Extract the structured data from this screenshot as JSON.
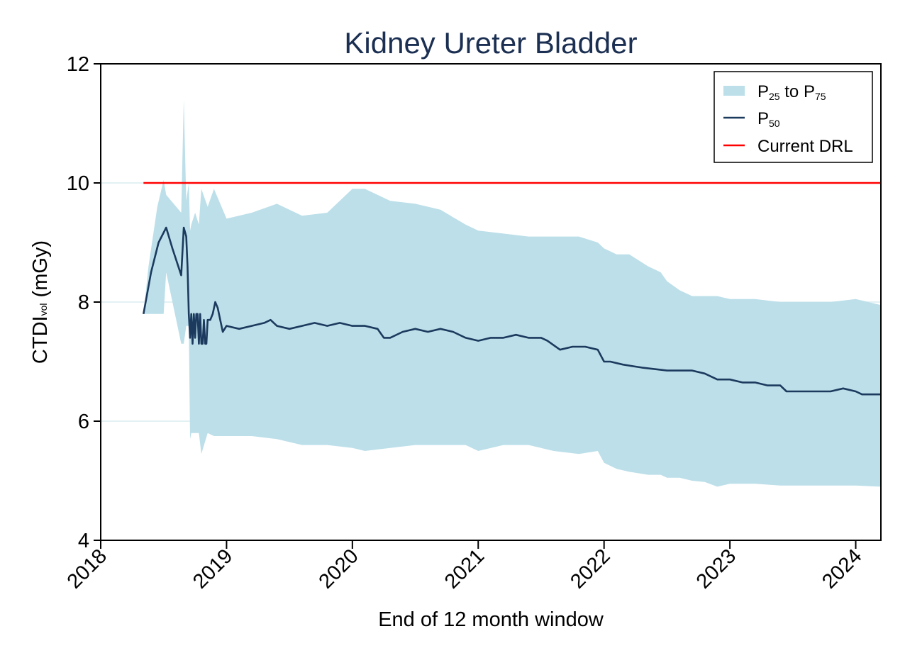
{
  "chart_data": {
    "type": "area",
    "title": "Kidney Ureter Bladder",
    "xlabel": "End of 12 month window",
    "ylabel": {
      "main": "CTDI",
      "sub": "vol",
      "unit": " (mGy)"
    },
    "xlim": [
      2018.0,
      2024.2
    ],
    "ylim": [
      4,
      12
    ],
    "x_ticks": [
      2018,
      2019,
      2020,
      2021,
      2022,
      2023,
      2024
    ],
    "x_tick_labels": [
      "2018",
      "2019",
      "2020",
      "2021",
      "2022",
      "2023",
      "2024"
    ],
    "y_ticks": [
      4,
      6,
      8,
      10,
      12
    ],
    "y_tick_labels": [
      "4",
      "6",
      "8",
      "10",
      "12"
    ],
    "grid": "horizontal",
    "legend": {
      "position": "top-right",
      "entries": [
        {
          "key": "band",
          "parts": [
            [
              "P",
              ""
            ],
            [
              "25",
              "sub"
            ],
            [
              " to P",
              ""
            ],
            [
              "75",
              "sub"
            ]
          ]
        },
        {
          "key": "median",
          "parts": [
            [
              "P",
              ""
            ],
            [
              "50",
              "sub"
            ]
          ]
        },
        {
          "key": "drl",
          "parts": [
            [
              "Current DRL",
              ""
            ]
          ]
        }
      ]
    },
    "colors": {
      "band": "#bcdfe9",
      "median": "#1b3a5e",
      "drl": "#ff0000",
      "grid": "#e3f1f4"
    },
    "series": [
      {
        "name": "P25 to P75",
        "x": [
          2018.34,
          2018.38,
          2018.45,
          2018.5,
          2018.52,
          2018.56,
          2018.64,
          2018.66,
          2018.68,
          2018.7,
          2018.71,
          2018.72,
          2018.75,
          2018.78,
          2018.8,
          2018.85,
          2018.9,
          2019.0,
          2019.2,
          2019.4,
          2019.6,
          2019.8,
          2020.0,
          2020.1,
          2020.3,
          2020.5,
          2020.7,
          2020.9,
          2021.0,
          2021.2,
          2021.4,
          2021.6,
          2021.8,
          2021.95,
          2022.0,
          2022.1,
          2022.2,
          2022.35,
          2022.45,
          2022.5,
          2022.6,
          2022.7,
          2022.8,
          2022.9,
          2023.0,
          2023.2,
          2023.4,
          2023.6,
          2023.8,
          2024.0,
          2024.2
        ],
        "low": [
          7.8,
          7.8,
          7.8,
          7.8,
          8.5,
          8.1,
          7.3,
          7.3,
          7.6,
          7.6,
          5.7,
          5.8,
          5.8,
          5.8,
          5.45,
          5.8,
          5.75,
          5.75,
          5.75,
          5.7,
          5.6,
          5.6,
          5.55,
          5.5,
          5.55,
          5.6,
          5.6,
          5.6,
          5.5,
          5.6,
          5.6,
          5.5,
          5.45,
          5.5,
          5.3,
          5.2,
          5.15,
          5.1,
          5.1,
          5.05,
          5.05,
          5.0,
          4.98,
          4.9,
          4.95,
          4.95,
          4.92,
          4.92,
          4.92,
          4.92,
          4.9
        ],
        "high": [
          7.8,
          8.6,
          9.6,
          10.05,
          9.8,
          9.7,
          9.5,
          11.4,
          9.7,
          10.0,
          9.2,
          9.3,
          9.5,
          9.3,
          9.9,
          9.6,
          9.9,
          9.4,
          9.5,
          9.65,
          9.45,
          9.5,
          9.9,
          9.9,
          9.7,
          9.65,
          9.55,
          9.3,
          9.2,
          9.15,
          9.1,
          9.1,
          9.1,
          9.0,
          8.9,
          8.8,
          8.8,
          8.6,
          8.5,
          8.35,
          8.2,
          8.1,
          8.1,
          8.1,
          8.05,
          8.05,
          8.0,
          8.0,
          8.0,
          8.05,
          7.95
        ]
      },
      {
        "name": "P50",
        "x": [
          2018.34,
          2018.4,
          2018.46,
          2018.52,
          2018.57,
          2018.64,
          2018.66,
          2018.68,
          2018.69,
          2018.7,
          2018.71,
          2018.72,
          2018.73,
          2018.74,
          2018.75,
          2018.76,
          2018.77,
          2018.78,
          2018.79,
          2018.8,
          2018.81,
          2018.82,
          2018.83,
          2018.84,
          2018.85,
          2018.87,
          2018.89,
          2018.91,
          2018.93,
          2018.95,
          2018.97,
          2019.0,
          2019.1,
          2019.2,
          2019.3,
          2019.35,
          2019.4,
          2019.5,
          2019.6,
          2019.7,
          2019.8,
          2019.9,
          2020.0,
          2020.1,
          2020.2,
          2020.25,
          2020.3,
          2020.4,
          2020.5,
          2020.6,
          2020.7,
          2020.8,
          2020.9,
          2021.0,
          2021.1,
          2021.2,
          2021.3,
          2021.4,
          2021.5,
          2021.55,
          2021.65,
          2021.75,
          2021.85,
          2021.95,
          2022.0,
          2022.05,
          2022.15,
          2022.3,
          2022.5,
          2022.7,
          2022.8,
          2022.9,
          2023.0,
          2023.1,
          2023.2,
          2023.3,
          2023.4,
          2023.45,
          2023.5,
          2023.6,
          2023.7,
          2023.8,
          2023.9,
          2024.0,
          2024.05,
          2024.1,
          2024.2
        ],
        "values": [
          7.8,
          8.5,
          9.0,
          9.25,
          8.9,
          8.45,
          9.25,
          9.1,
          8.6,
          7.8,
          7.4,
          7.8,
          7.3,
          7.8,
          7.4,
          7.8,
          7.8,
          7.3,
          7.8,
          7.3,
          7.3,
          7.7,
          7.3,
          7.3,
          7.7,
          7.7,
          7.8,
          8.0,
          7.9,
          7.7,
          7.5,
          7.6,
          7.55,
          7.6,
          7.65,
          7.7,
          7.6,
          7.55,
          7.6,
          7.65,
          7.6,
          7.65,
          7.6,
          7.6,
          7.55,
          7.4,
          7.4,
          7.5,
          7.55,
          7.5,
          7.55,
          7.5,
          7.4,
          7.35,
          7.4,
          7.4,
          7.45,
          7.4,
          7.4,
          7.35,
          7.2,
          7.25,
          7.25,
          7.2,
          7.0,
          7.0,
          6.95,
          6.9,
          6.85,
          6.85,
          6.8,
          6.7,
          6.7,
          6.65,
          6.65,
          6.6,
          6.6,
          6.5,
          6.5,
          6.5,
          6.5,
          6.5,
          6.55,
          6.5,
          6.45,
          6.45,
          6.45
        ]
      },
      {
        "name": "Current DRL",
        "x": [
          2018.34,
          2024.2
        ],
        "values": [
          10,
          10
        ]
      }
    ]
  }
}
